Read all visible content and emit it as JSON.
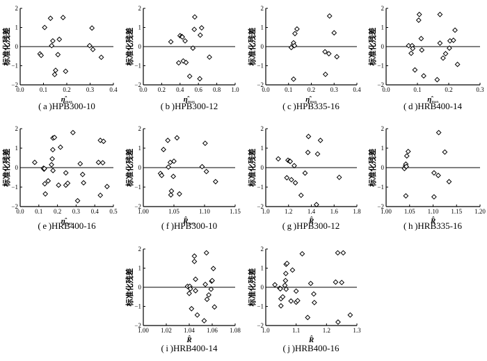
{
  "chart_data": [
    {
      "id": "a",
      "type": "scatter",
      "caption": "(a)HPB300-10",
      "xlabel_main": "η̂",
      "xlabel_sub": "max",
      "ylabel": "标准化残差",
      "xlim": [
        0.0,
        0.4
      ],
      "ylim": [
        -2,
        2
      ],
      "xticks": [
        "0.0",
        "0.1",
        "0.2",
        "0.3",
        "0.4"
      ],
      "yticks": [
        "-2",
        "-1",
        "0",
        "1",
        "2"
      ],
      "zero_line": true,
      "points": [
        [
          0.085,
          -0.38
        ],
        [
          0.09,
          -0.46
        ],
        [
          0.105,
          1.0
        ],
        [
          0.13,
          1.48
        ],
        [
          0.135,
          0.05
        ],
        [
          0.14,
          0.3
        ],
        [
          0.148,
          -1.46
        ],
        [
          0.152,
          -1.24
        ],
        [
          0.162,
          -0.42
        ],
        [
          0.168,
          0.38
        ],
        [
          0.184,
          1.52
        ],
        [
          0.195,
          -1.29
        ],
        [
          0.298,
          0.05
        ],
        [
          0.308,
          0.97
        ],
        [
          0.312,
          -0.15
        ],
        [
          0.348,
          -0.56
        ]
      ]
    },
    {
      "id": "b",
      "type": "scatter",
      "caption": "(b)HPB300-12",
      "xlabel_main": "η̂",
      "xlabel_sub": "max",
      "ylabel": "标准化残差",
      "xlim": [
        0.0,
        1.0
      ],
      "ylim": [
        -2,
        2
      ],
      "xticks": [
        "0.0",
        "0.2",
        "0.4",
        "0.6",
        "0.8",
        "1.0"
      ],
      "yticks": [
        "-2",
        "-1",
        "0",
        "1",
        "2"
      ],
      "zero_line": true,
      "points": [
        [
          0.3,
          0.25
        ],
        [
          0.385,
          -0.85
        ],
        [
          0.4,
          0.57
        ],
        [
          0.42,
          0.53
        ],
        [
          0.425,
          0.5
        ],
        [
          0.435,
          -0.75
        ],
        [
          0.455,
          0.3
        ],
        [
          0.465,
          -0.83
        ],
        [
          0.505,
          -1.55
        ],
        [
          0.54,
          -0.08
        ],
        [
          0.555,
          0.9
        ],
        [
          0.56,
          1.55
        ],
        [
          0.615,
          -1.68
        ],
        [
          0.62,
          0.6
        ],
        [
          0.635,
          0.98
        ],
        [
          0.72,
          -0.55
        ]
      ]
    },
    {
      "id": "c",
      "type": "scatter",
      "caption": "(c)HPB335-16",
      "xlabel_main": "η̂",
      "xlabel_sub": "max",
      "ylabel": "标准化残差",
      "xlim": [
        0.0,
        0.4
      ],
      "ylim": [
        -2,
        2
      ],
      "xticks": [
        "0.0",
        "0.1",
        "0.2",
        "0.3",
        "0.4"
      ],
      "yticks": [
        "-2",
        "-1",
        "0",
        "1",
        "2"
      ],
      "zero_line": true,
      "points": [
        [
          0.112,
          -0.05
        ],
        [
          0.12,
          0.08
        ],
        [
          0.122,
          0.2
        ],
        [
          0.122,
          -1.7
        ],
        [
          0.126,
          0.05
        ],
        [
          0.128,
          0.68
        ],
        [
          0.137,
          0.92
        ],
        [
          0.26,
          -0.27
        ],
        [
          0.262,
          -1.45
        ],
        [
          0.277,
          -0.37
        ],
        [
          0.28,
          1.6
        ],
        [
          0.3,
          0.72
        ],
        [
          0.312,
          -0.53
        ]
      ]
    },
    {
      "id": "d",
      "type": "scatter",
      "caption": "(d)HRB400-14",
      "xlabel_main": "η̂",
      "xlabel_sub": "max",
      "ylabel": "标准化残差",
      "xlim": [
        0.0,
        0.3
      ],
      "ylim": [
        -2,
        2
      ],
      "xticks": [
        "0.0",
        "0.1",
        "0.2",
        "0.3"
      ],
      "yticks": [
        "-2",
        "-1",
        "0",
        "1",
        "2"
      ],
      "zero_line": true,
      "points": [
        [
          0.072,
          0.05
        ],
        [
          0.08,
          -0.35
        ],
        [
          0.083,
          0.05
        ],
        [
          0.085,
          -0.1
        ],
        [
          0.092,
          -1.22
        ],
        [
          0.104,
          1.38
        ],
        [
          0.106,
          1.68
        ],
        [
          0.112,
          0.42
        ],
        [
          0.114,
          -0.18
        ],
        [
          0.12,
          -1.53
        ],
        [
          0.163,
          -1.73
        ],
        [
          0.172,
          1.68
        ],
        [
          0.172,
          0.18
        ],
        [
          0.182,
          -0.6
        ],
        [
          0.19,
          -0.37
        ],
        [
          0.202,
          -0.08
        ],
        [
          0.204,
          0.3
        ],
        [
          0.215,
          0.33
        ],
        [
          0.22,
          0.86
        ],
        [
          0.228,
          -0.93
        ]
      ]
    },
    {
      "id": "e",
      "type": "scatter",
      "caption": "(e)HRB400-16",
      "xlabel_main": "η̂",
      "xlabel_sub": "max",
      "ylabel": "标准化残差",
      "xlim": [
        0.0,
        0.5
      ],
      "ylim": [
        -2,
        2
      ],
      "xticks": [
        "0.0",
        "0.1",
        "0.2",
        "0.3",
        "0.4",
        "0.5"
      ],
      "yticks": [
        "-2",
        "-1",
        "0",
        "1",
        "2"
      ],
      "zero_line": true,
      "points": [
        [
          0.078,
          0.27
        ],
        [
          0.125,
          -0.03
        ],
        [
          0.128,
          -0.08
        ],
        [
          0.13,
          -0.05
        ],
        [
          0.132,
          -0.83
        ],
        [
          0.135,
          -1.35
        ],
        [
          0.15,
          -0.68
        ],
        [
          0.168,
          0.15
        ],
        [
          0.172,
          0.45
        ],
        [
          0.175,
          0.92
        ],
        [
          0.176,
          -0.15
        ],
        [
          0.176,
          1.52
        ],
        [
          0.184,
          1.55
        ],
        [
          0.206,
          -0.9
        ],
        [
          0.216,
          1.05
        ],
        [
          0.245,
          -0.27
        ],
        [
          0.245,
          -0.9
        ],
        [
          0.255,
          -0.8
        ],
        [
          0.283,
          1.8
        ],
        [
          0.308,
          -1.7
        ],
        [
          0.322,
          0.2
        ],
        [
          0.335,
          -0.35
        ],
        [
          0.34,
          -0.78
        ],
        [
          0.42,
          0.27
        ],
        [
          0.43,
          -1.42
        ],
        [
          0.43,
          1.4
        ],
        [
          0.443,
          0.25
        ],
        [
          0.447,
          1.35
        ],
        [
          0.466,
          -0.97
        ]
      ]
    },
    {
      "id": "f",
      "type": "scatter",
      "caption": "(f)HPB300-10",
      "xlabel_main": "R̂",
      "xlabel_sub": "max",
      "ylabel": "标准化残差",
      "xlim": [
        1.0,
        1.15
      ],
      "ylim": [
        -2,
        2
      ],
      "xticks": [
        "1.00",
        "1.05",
        "1.10",
        "1.15"
      ],
      "yticks": [
        "-2",
        "-1",
        "0",
        "1",
        "2"
      ],
      "zero_line": true,
      "points": [
        [
          1.028,
          -0.3
        ],
        [
          1.03,
          -0.4
        ],
        [
          1.033,
          0.93
        ],
        [
          1.04,
          1.4
        ],
        [
          1.041,
          0.03
        ],
        [
          1.044,
          0.27
        ],
        [
          1.045,
          -1.4
        ],
        [
          1.046,
          -1.2
        ],
        [
          1.049,
          -0.45
        ],
        [
          1.05,
          0.33
        ],
        [
          1.055,
          1.53
        ],
        [
          1.059,
          -1.35
        ],
        [
          1.096,
          0.05
        ],
        [
          1.101,
          1.25
        ],
        [
          1.103,
          -0.2
        ],
        [
          1.118,
          -0.72
        ]
      ]
    },
    {
      "id": "g",
      "type": "scatter",
      "caption": "(g)HPB300-12",
      "xlabel_main": "R̂",
      "xlabel_sub": "",
      "ylabel": "标准化残差",
      "xlim": [
        1.0,
        1.8
      ],
      "ylim": [
        -2,
        2
      ],
      "xticks": [
        "1.0",
        "1.2",
        "1.4",
        "1.6",
        "1.8"
      ],
      "yticks": [
        "-2",
        "-1",
        "0",
        "1",
        "2"
      ],
      "zero_line": true,
      "points": [
        [
          1.11,
          0.45
        ],
        [
          1.185,
          -0.52
        ],
        [
          1.195,
          0.38
        ],
        [
          1.21,
          0.33
        ],
        [
          1.215,
          0.32
        ],
        [
          1.225,
          -0.62
        ],
        [
          1.25,
          0.1
        ],
        [
          1.26,
          -0.78
        ],
        [
          1.31,
          -1.42
        ],
        [
          1.345,
          -0.28
        ],
        [
          1.37,
          0.78
        ],
        [
          1.375,
          1.6
        ],
        [
          1.445,
          -1.9
        ],
        [
          1.455,
          0.7
        ],
        [
          1.48,
          1.4
        ],
        [
          1.645,
          -0.5
        ]
      ]
    },
    {
      "id": "h",
      "type": "scatter",
      "caption": "(h)HRB335-16",
      "xlabel_main": "R̂",
      "xlabel_sub": "",
      "ylabel": "标准化残差",
      "xlim": [
        1.0,
        1.2
      ],
      "ylim": [
        -2,
        2
      ],
      "xticks": [
        "1.00",
        "1.05",
        "1.10",
        "1.15",
        "1.20"
      ],
      "yticks": [
        "-2",
        "-1",
        "0",
        "1",
        "2"
      ],
      "zero_line": true,
      "points": [
        [
          1.039,
          -0.05
        ],
        [
          1.041,
          0.08
        ],
        [
          1.042,
          0.18
        ],
        [
          1.042,
          -1.45
        ],
        [
          1.043,
          0.06
        ],
        [
          1.044,
          0.6
        ],
        [
          1.047,
          0.83
        ],
        [
          1.102,
          -0.27
        ],
        [
          1.102,
          -1.5
        ],
        [
          1.111,
          -0.4
        ],
        [
          1.112,
          1.8
        ],
        [
          1.125,
          0.8
        ],
        [
          1.134,
          -0.72
        ]
      ]
    },
    {
      "id": "i",
      "type": "scatter",
      "caption": "(i)HRB400-14",
      "xlabel_main": "R̂",
      "xlabel_sub": "",
      "ylabel": "标准化残差",
      "xlim": [
        1.0,
        1.08
      ],
      "ylim": [
        -2,
        2
      ],
      "xticks": [
        "1.00",
        "1.02",
        "1.04",
        "1.06",
        "1.08"
      ],
      "yticks": [
        "-2",
        "-1",
        "0",
        "1",
        "2"
      ],
      "zero_line": true,
      "points": [
        [
          1.0385,
          0.05
        ],
        [
          1.04,
          -0.32
        ],
        [
          1.0405,
          0.05
        ],
        [
          1.041,
          -0.08
        ],
        [
          1.042,
          -1.12
        ],
        [
          1.0445,
          1.35
        ],
        [
          1.0445,
          1.63
        ],
        [
          1.0455,
          0.42
        ],
        [
          1.0455,
          -0.18
        ],
        [
          1.047,
          -1.45
        ],
        [
          1.053,
          -1.75
        ],
        [
          1.054,
          0.15
        ],
        [
          1.055,
          1.8
        ],
        [
          1.0555,
          -0.63
        ],
        [
          1.057,
          -0.4
        ],
        [
          1.059,
          -0.1
        ],
        [
          1.0595,
          0.32
        ],
        [
          1.06,
          0.35
        ],
        [
          1.061,
          0.98
        ],
        [
          1.062,
          -1.03
        ]
      ]
    },
    {
      "id": "j",
      "type": "scatter",
      "caption": "(j)HRB400-16",
      "xlabel_main": "R̂",
      "xlabel_sub": "",
      "ylabel": "标准化残差",
      "xlim": [
        1.0,
        1.3
      ],
      "ylim": [
        -2,
        2
      ],
      "xticks": [
        "1.0",
        "1.1",
        "1.2",
        "1.3"
      ],
      "yticks": [
        "-2",
        "-1",
        "0",
        "1",
        "2"
      ],
      "zero_line": true,
      "points": [
        [
          1.03,
          0.13
        ],
        [
          1.046,
          -0.05
        ],
        [
          1.048,
          -0.08
        ],
        [
          1.05,
          -0.6
        ],
        [
          1.05,
          -0.97
        ],
        [
          1.056,
          -0.5
        ],
        [
          1.063,
          0.1
        ],
        [
          1.065,
          0.35
        ],
        [
          1.066,
          0.72
        ],
        [
          1.067,
          -0.1
        ],
        [
          1.067,
          1.2
        ],
        [
          1.07,
          1.25
        ],
        [
          1.083,
          -0.72
        ],
        [
          1.088,
          0.9
        ],
        [
          1.1,
          -0.2
        ],
        [
          1.1,
          -0.78
        ],
        [
          1.105,
          -0.7
        ],
        [
          1.12,
          1.75
        ],
        [
          1.138,
          -1.58
        ],
        [
          1.148,
          0.2
        ],
        [
          1.158,
          -0.35
        ],
        [
          1.16,
          -0.8
        ],
        [
          1.23,
          0.27
        ],
        [
          1.237,
          1.8
        ],
        [
          1.238,
          -1.82
        ],
        [
          1.25,
          0.25
        ],
        [
          1.255,
          1.8
        ],
        [
          1.278,
          -1.45
        ]
      ]
    }
  ]
}
